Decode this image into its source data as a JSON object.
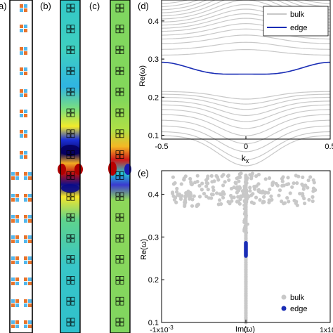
{
  "panel_labels": {
    "a": "a)",
    "b": "(b)",
    "c": "(c)",
    "d": "(d)",
    "e": "(e)"
  },
  "colors": {
    "bulk": "#c8c8c8",
    "edge": "#1a2db5",
    "orange": "#e8742c",
    "blue": "#53b7ec"
  },
  "chart_data": [
    {
      "type": "line",
      "panel": "d",
      "xlabel": "k_x",
      "ylabel": "Re(ω)",
      "xlim": [
        -0.5,
        0.5
      ],
      "ylim": [
        0.09,
        0.455
      ],
      "xticks": [
        "-0.5",
        "0",
        "0.5"
      ],
      "yticks": [
        "0.1",
        "0.2",
        "0.3",
        "0.4"
      ],
      "legend": {
        "placement": "top-right",
        "entries": [
          "bulk",
          "edge"
        ]
      },
      "series": [
        {
          "name": "edge",
          "x": [
            -0.5,
            -0.375,
            -0.25,
            -0.125,
            0,
            0.125,
            0.25,
            0.375,
            0.5
          ],
          "y": [
            0.282,
            0.287,
            0.281,
            0.265,
            0.256,
            0.265,
            0.281,
            0.287,
            0.282
          ]
        },
        {
          "name": "bulk",
          "note_bands_lower": [
            0.215,
            0.208,
            0.2,
            0.19,
            0.18,
            0.168,
            0.155,
            0.14,
            0.125,
            0.11,
            0.1
          ],
          "note_bands_upper": [
            0.31,
            0.325,
            0.34,
            0.352,
            0.362,
            0.372,
            0.38,
            0.388,
            0.396,
            0.404,
            0.412,
            0.42,
            0.428,
            0.436,
            0.444
          ]
        }
      ]
    },
    {
      "type": "scatter",
      "panel": "e",
      "xlabel": "Im(ω)",
      "ylabel": "Re(ω)",
      "xlim": [
        -0.001,
        0.001
      ],
      "ylim": [
        0.1,
        0.455
      ],
      "xticks": [
        "-1x10",
        "0",
        "1x10"
      ],
      "xtick_exponent": "-3",
      "yticks": [
        "0.1",
        "0.2",
        "0.3",
        "0.4"
      ],
      "legend": {
        "placement": "bottom-right",
        "entries": [
          "bulk",
          "edge"
        ]
      },
      "series": [
        {
          "name": "bulk",
          "x": [
            0,
            0,
            0,
            0,
            0,
            0,
            0,
            0,
            5e-05,
            -5e-05
          ],
          "y": [
            0.1,
            0.15,
            0.2,
            0.22,
            0.31,
            0.36,
            0.4,
            0.43,
            0.44,
            0.445
          ]
        },
        {
          "name": "edge",
          "x": [
            0,
            0,
            0,
            0,
            0
          ],
          "y": [
            0.256,
            0.265,
            0.275,
            0.282,
            0.287
          ]
        }
      ]
    }
  ]
}
